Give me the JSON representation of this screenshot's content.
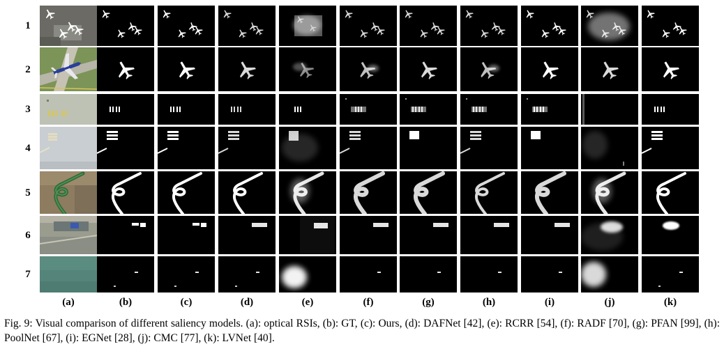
{
  "row_labels": [
    "1",
    "2",
    "3",
    "4",
    "5",
    "6",
    "7"
  ],
  "column_labels": [
    "(a)",
    "(b)",
    "(c)",
    "(d)",
    "(e)",
    "(f)",
    "(g)",
    "(h)",
    "(i)",
    "(j)",
    "(k)"
  ],
  "caption": {
    "line1": "Fig. 9: Visual comparison of different saliency models. (a): optical RSIs, (b): GT, (c): Ours, (d): DAFNet [42], (e): RCRR",
    "line2": "[54], (f): RADF [70], (g): PFAN [99], (h): PoolNet [67], (i): EGNet [28], (j): CMC [77], (k): LVNet [40]."
  },
  "colors": {
    "background": "#ffffff",
    "map_bg": "#000000",
    "saliency": "#ffffff",
    "text": "#000000"
  }
}
